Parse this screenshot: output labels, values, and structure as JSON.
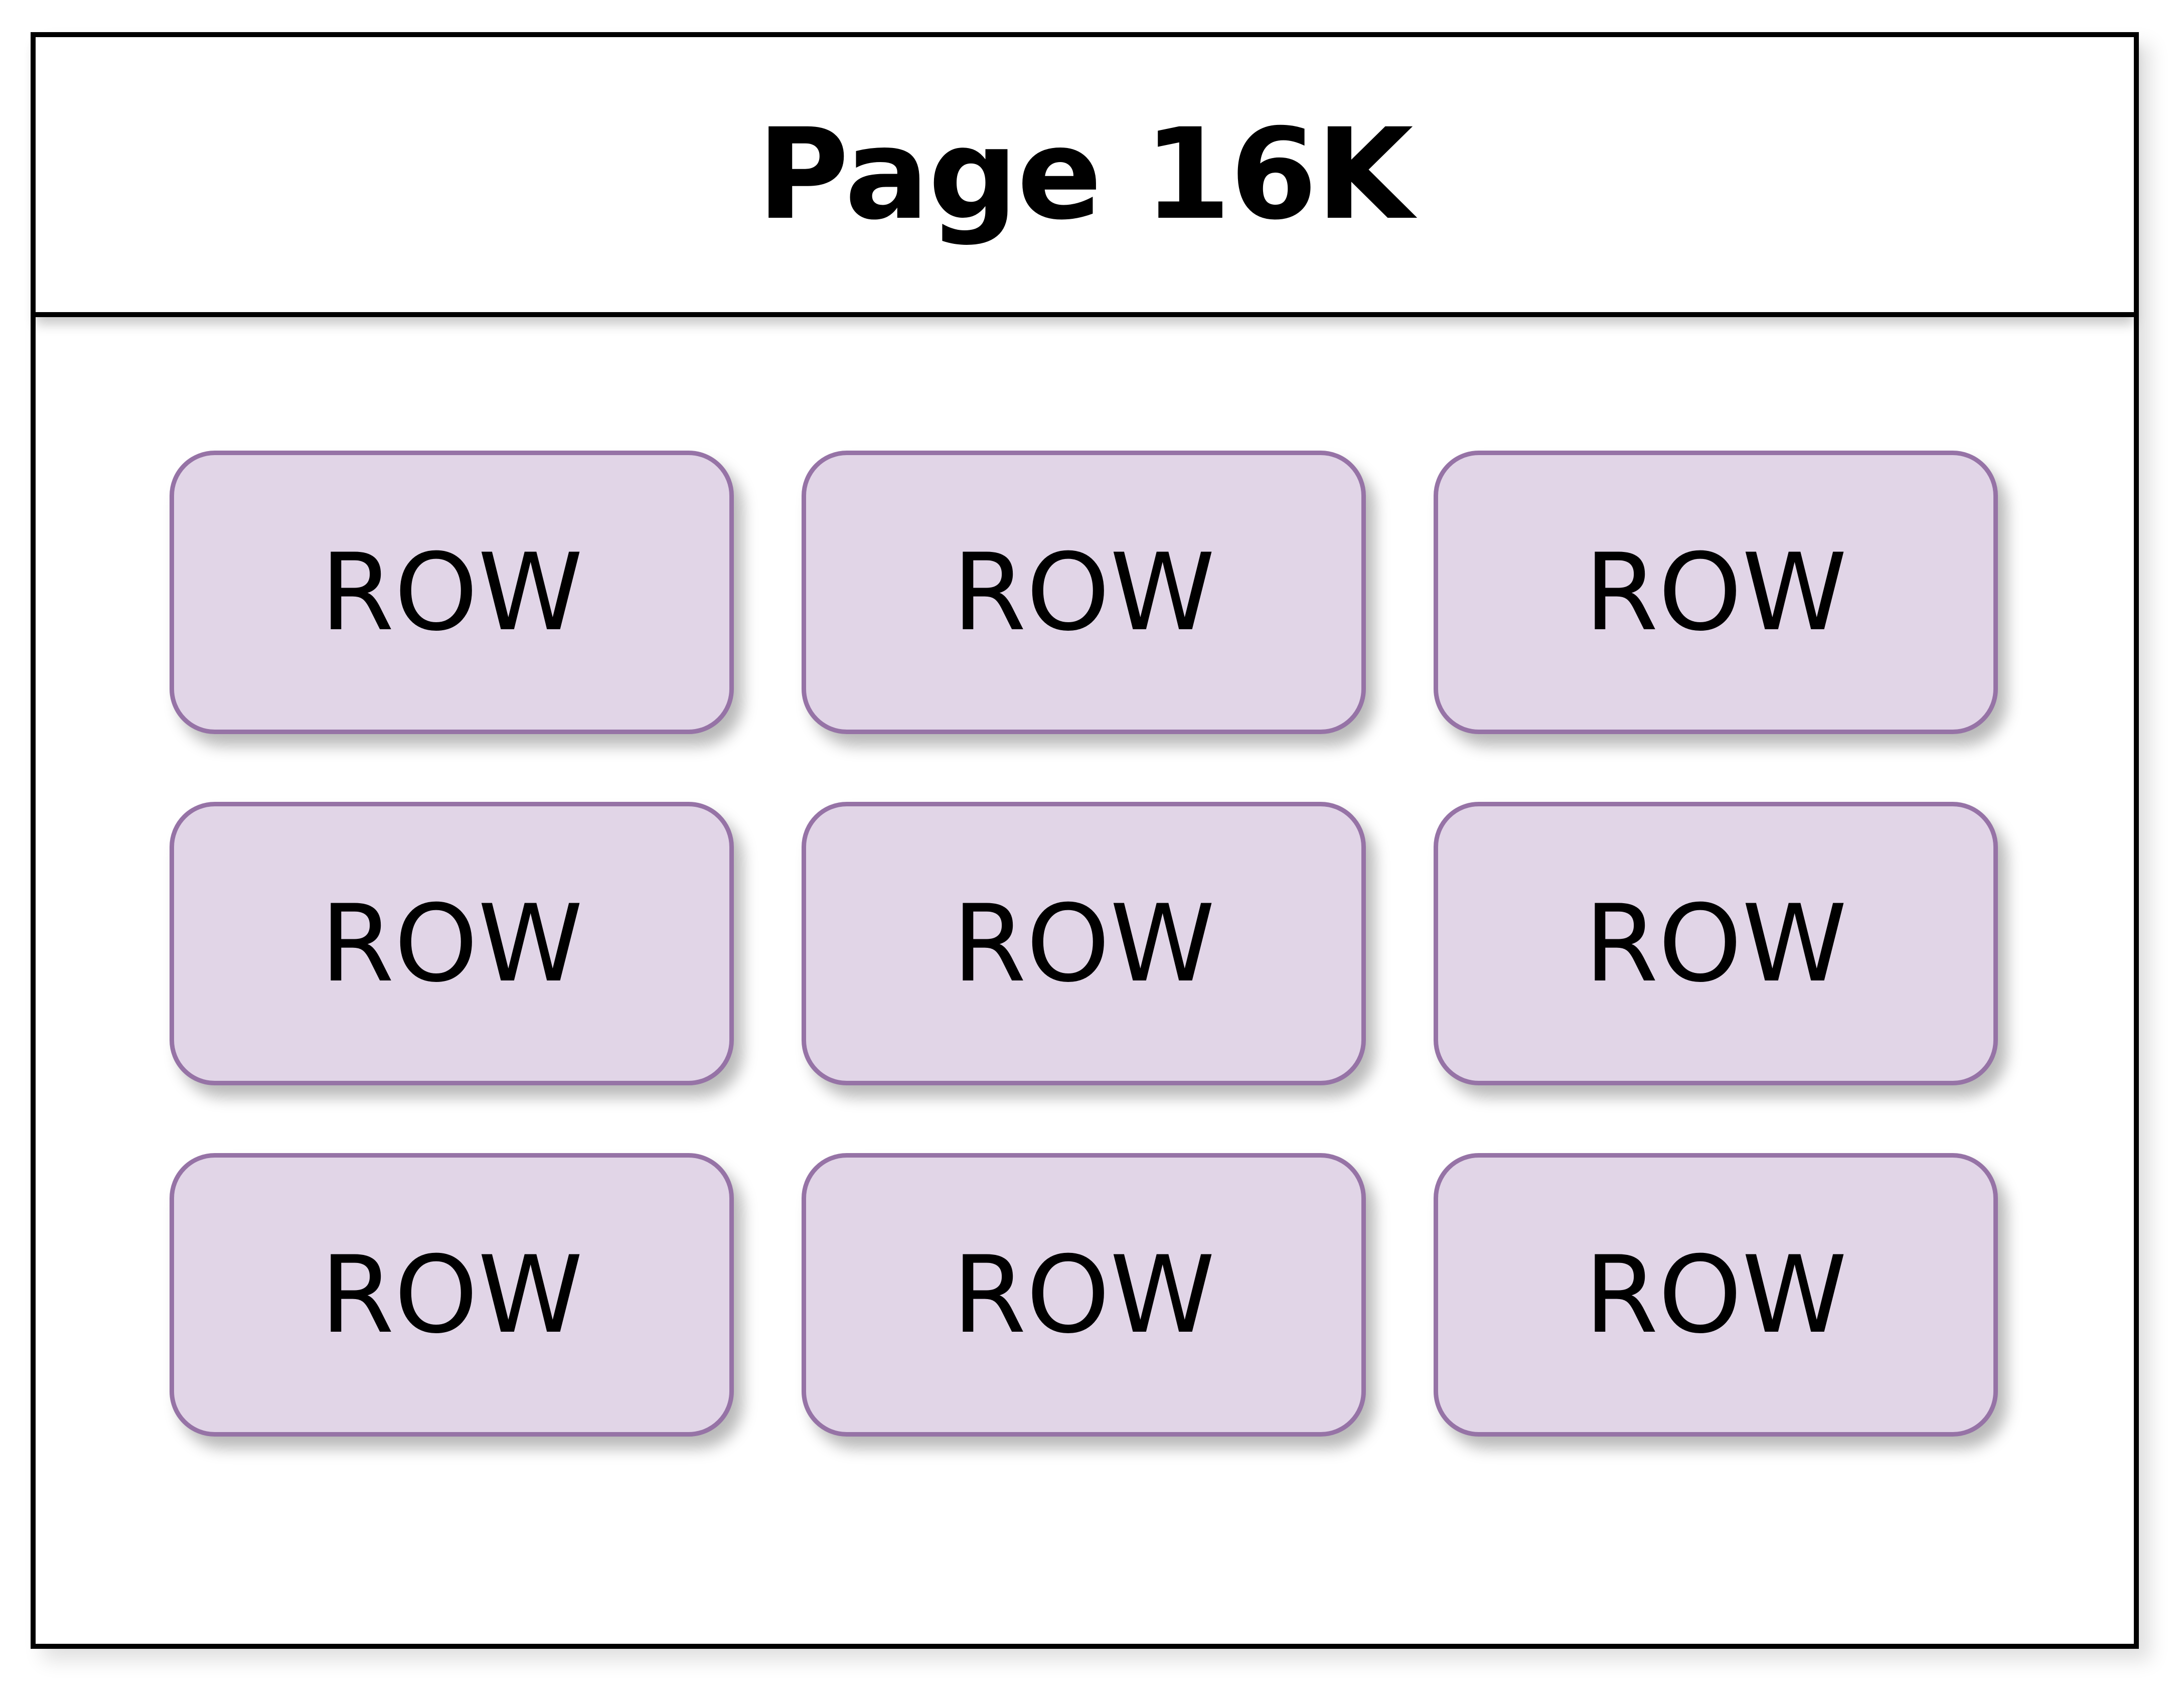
{
  "page": {
    "title": "Page 16K"
  },
  "rows": [
    {
      "label": "ROW"
    },
    {
      "label": "ROW"
    },
    {
      "label": "ROW"
    },
    {
      "label": "ROW"
    },
    {
      "label": "ROW"
    },
    {
      "label": "ROW"
    },
    {
      "label": "ROW"
    },
    {
      "label": "ROW"
    },
    {
      "label": "ROW"
    }
  ],
  "colors": {
    "row_fill": "#e1d5e7",
    "row_border": "#9673a6",
    "frame_border": "#000000"
  }
}
